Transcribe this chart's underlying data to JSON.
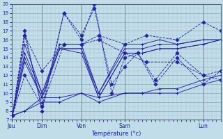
{
  "xlabel": "Température (°c)",
  "bg_color": "#c0dde8",
  "grid_major_color": "#8899aa",
  "grid_minor_color": "#99aabb",
  "line_color": "#2222aa",
  "ylim": [
    7,
    20
  ],
  "xlim": [
    0,
    24
  ],
  "yticks": [
    7,
    8,
    9,
    10,
    11,
    12,
    13,
    14,
    15,
    16,
    17,
    18,
    19,
    20
  ],
  "day_labels": [
    "Jeu",
    "Dim",
    "Ven",
    "Sam",
    "Lun"
  ],
  "day_positions": [
    0,
    3.5,
    8.0,
    13.0,
    22.0
  ],
  "vline_positions": [
    0,
    3.5,
    8.0,
    13.0,
    22.0
  ],
  "series": [
    {
      "x": [
        0.1,
        1.5,
        3.5,
        5.5,
        8.0,
        10.0,
        13.0,
        15.0,
        17.0,
        19.0,
        22.0,
        24.0
      ],
      "y": [
        7.5,
        15.5,
        10.0,
        15.5,
        15.5,
        10.0,
        15.5,
        15.5,
        16.0,
        15.5,
        16.0,
        16.0
      ],
      "style": "-",
      "marker": "+"
    },
    {
      "x": [
        0.1,
        1.5,
        3.5,
        5.5,
        8.0,
        10.0,
        13.0,
        15.0,
        17.0,
        19.0,
        22.0,
        24.0
      ],
      "y": [
        7.5,
        14.5,
        10.0,
        15.0,
        15.0,
        10.0,
        15.0,
        15.0,
        15.5,
        15.5,
        16.0,
        16.0
      ],
      "style": "-",
      "marker": "+"
    },
    {
      "x": [
        0.1,
        1.5,
        3.5,
        5.5,
        8.0,
        10.0,
        13.0,
        15.0,
        17.0,
        19.0,
        22.0,
        24.0
      ],
      "y": [
        7.5,
        14.0,
        9.5,
        15.0,
        15.0,
        9.5,
        14.5,
        14.5,
        15.0,
        15.0,
        15.5,
        16.0
      ],
      "style": "-",
      "marker": "+"
    },
    {
      "x": [
        0.1,
        1.5,
        3.5,
        5.5,
        8.0,
        10.0,
        13.0,
        15.0,
        17.0,
        19.0,
        22.0,
        24.0
      ],
      "y": [
        7.5,
        13.5,
        9.5,
        15.0,
        14.5,
        9.5,
        14.5,
        14.5,
        15.0,
        15.0,
        15.5,
        16.0
      ],
      "style": "-",
      "marker": "+"
    },
    {
      "x": [
        0.1,
        1.5,
        3.5,
        5.5,
        8.0,
        10.0,
        13.0,
        15.0,
        17.0,
        19.0,
        22.0,
        24.0
      ],
      "y": [
        7.5,
        8.0,
        9.5,
        9.5,
        10.0,
        9.5,
        10.0,
        10.0,
        10.5,
        10.5,
        11.5,
        12.0
      ],
      "style": "-",
      "marker": "+"
    },
    {
      "x": [
        0.1,
        1.5,
        3.5,
        5.5,
        8.0,
        10.0,
        13.0,
        15.0,
        17.0,
        19.0,
        22.0,
        24.0
      ],
      "y": [
        7.5,
        8.0,
        9.0,
        9.0,
        10.0,
        9.0,
        10.0,
        10.0,
        10.0,
        10.0,
        11.0,
        11.5
      ],
      "style": "-",
      "marker": "+"
    },
    {
      "x": [
        0.1,
        1.5,
        3.5,
        6.0,
        8.0,
        9.5,
        11.5,
        13.0,
        14.5,
        16.5,
        19.0,
        22.0,
        24.0
      ],
      "y": [
        7.5,
        17.0,
        8.0,
        19.0,
        16.5,
        19.5,
        11.0,
        13.0,
        14.5,
        11.0,
        14.0,
        11.0,
        12.5
      ],
      "style": "--",
      "marker": "D"
    },
    {
      "x": [
        0.1,
        1.5,
        3.5,
        6.0,
        8.0,
        9.5,
        11.5,
        13.0,
        14.5,
        16.5,
        19.0,
        22.0,
        24.0
      ],
      "y": [
        7.5,
        16.5,
        8.5,
        19.0,
        16.0,
        20.0,
        10.0,
        14.0,
        14.5,
        11.5,
        14.5,
        12.0,
        11.5
      ],
      "style": "--",
      "marker": "D"
    },
    {
      "x": [
        0.1,
        1.5,
        3.5,
        6.0,
        8.0,
        10.0,
        13.0,
        15.5,
        19.0,
        22.0,
        24.0
      ],
      "y": [
        7.5,
        12.0,
        8.5,
        15.5,
        15.5,
        16.0,
        14.5,
        13.5,
        13.5,
        12.0,
        12.5
      ],
      "style": "--",
      "marker": "D"
    },
    {
      "x": [
        0.1,
        1.5,
        3.5,
        6.0,
        8.0,
        10.0,
        13.0,
        15.5,
        19.0,
        22.0,
        24.0
      ],
      "y": [
        7.5,
        16.5,
        12.5,
        15.5,
        15.5,
        16.5,
        15.5,
        16.5,
        16.0,
        18.0,
        17.0
      ],
      "style": "--",
      "marker": "D"
    }
  ]
}
